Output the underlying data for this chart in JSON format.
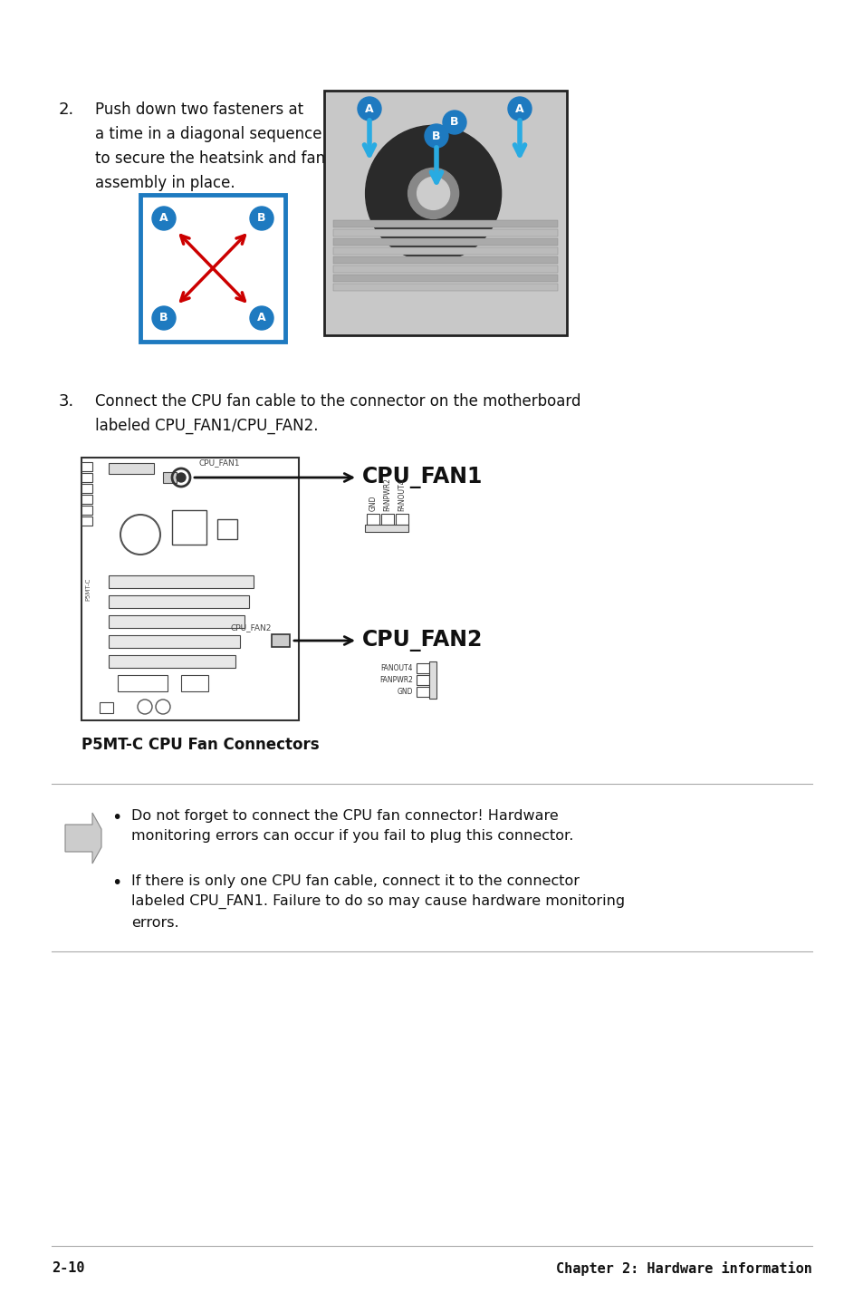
{
  "bg_color": "#ffffff",
  "step2_number": "2.",
  "step2_text": "Push down two fasteners at\na time in a diagonal sequence\nto secure the heatsink and fan\nassembly in place.",
  "step3_number": "3.",
  "step3_text": "Connect the CPU fan cable to the connector on the motherboard\nlabeled CPU_FAN1/CPU_FAN2.",
  "caption": "P5MT-C CPU Fan Connectors",
  "footer_left": "2-10",
  "footer_right": "Chapter 2: Hardware information",
  "note_bullet1": "Do not forget to connect the CPU fan connector! Hardware\nmonitoring errors can occur if you fail to plug this connector.",
  "note_bullet2": "If there is only one CPU fan cable, connect it to the connector\nlabeled CPU_FAN1. Failure to do so may cause hardware monitoring\nerrors.",
  "blue_border_color": "#1e7ac0",
  "red_arrow_color": "#cc0000",
  "cyan_arrow_color": "#29abe2",
  "label_circle_color": "#1e7ac0",
  "label_text_color": "#ffffff",
  "arrow_dark": "#222222",
  "line_color": "#999999"
}
